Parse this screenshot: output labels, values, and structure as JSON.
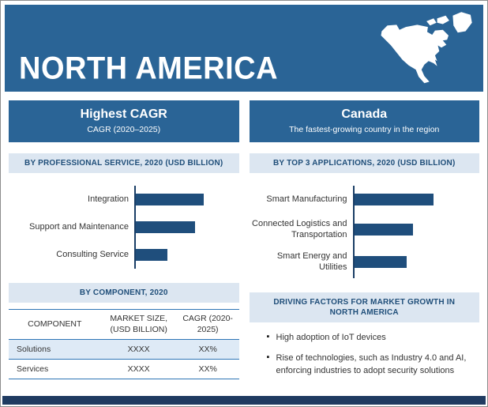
{
  "title": "NORTH AMERICA",
  "colors": {
    "band": "#2A6496",
    "panel": "#2A6496",
    "bar": "#1F4E7C",
    "section-bg": "#DCE6F1",
    "section-text": "#1F4E79",
    "rule": "#2E75B6",
    "row-highlight": "#DEEAF6",
    "footer": "#1F3B61"
  },
  "left_panel": {
    "header_title": "Highest CAGR",
    "header_subtitle": "CAGR (2020–2025)",
    "section2_title": "BY COMPONENT, 2020",
    "table": {
      "headers": [
        "COMPONENT",
        "MARKET SIZE, (USD BILLION)",
        "CAGR (2020-2025)"
      ],
      "rows": [
        {
          "component": "Solutions",
          "market_size": "XXXX",
          "cagr": "XX%"
        },
        {
          "component": "Services",
          "market_size": "XXXX",
          "cagr": "XX%"
        }
      ]
    }
  },
  "right_panel": {
    "header_title": "Canada",
    "header_subtitle": "The fastest-growing country in the region",
    "section2_title": "DRIVING FACTORS FOR MARKET GROWTH IN NORTH AMERICA",
    "bullets": [
      "High adoption of IoT devices",
      "Rise of technologies, such as Industry 4.0 and AI, enforcing industries to adopt security solutions"
    ]
  },
  "chart_data": [
    {
      "type": "bar",
      "orientation": "horizontal",
      "title": "BY PROFESSIONAL SERVICE, 2020 (USD BILLION)",
      "categories": [
        "Integration",
        "Support and Maintenance",
        "Consulting Service"
      ],
      "values": [
        71,
        62,
        33
      ],
      "value_labels_shown": false
    },
    {
      "type": "bar",
      "orientation": "horizontal",
      "title": "BY TOP 3 APPLICATIONS, 2020 (USD BILLION)",
      "categories": [
        "Smart Manufacturing",
        "Connected Logistics and Transportation",
        "Smart Energy and Utilities"
      ],
      "values": [
        68,
        50,
        45
      ],
      "value_labels_shown": false
    }
  ]
}
